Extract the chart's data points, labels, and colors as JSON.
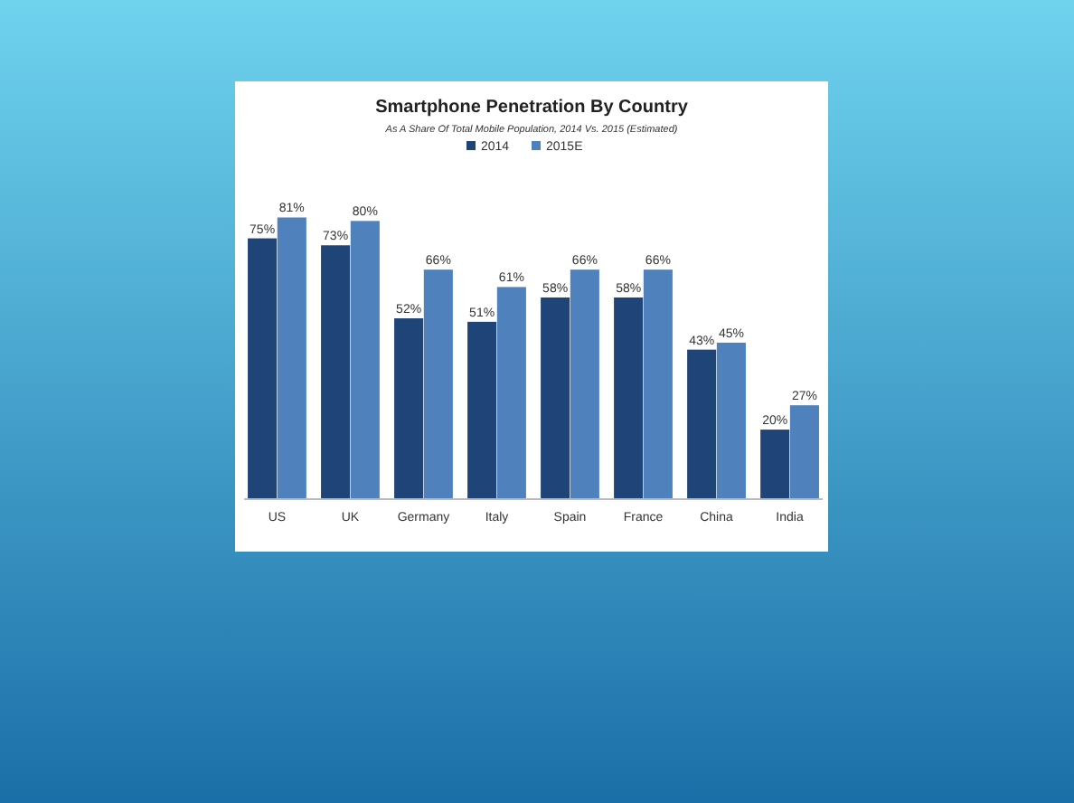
{
  "chart_data": {
    "type": "bar",
    "title": "Smartphone Penetration By Country",
    "subtitle": "As A Share Of Total Mobile Population, 2014 Vs. 2015 (Estimated)",
    "categories": [
      "US",
      "UK",
      "Germany",
      "Italy",
      "Spain",
      "France",
      "China",
      "India"
    ],
    "series": [
      {
        "name": "2014",
        "color": "#1f4477",
        "values": [
          75,
          73,
          52,
          51,
          58,
          58,
          43,
          20
        ],
        "value_labels": [
          "75%",
          "73%",
          "52%",
          "51%",
          "58%",
          "58%",
          "43%",
          "20%"
        ]
      },
      {
        "name": "2015E",
        "color": "#4f81bd",
        "values": [
          81,
          80,
          66,
          61,
          66,
          66,
          45,
          27
        ],
        "value_labels": [
          "81%",
          "80%",
          "66%",
          "61%",
          "66%",
          "66%",
          "45%",
          "27%"
        ]
      }
    ],
    "legend": "top",
    "grid": false
  }
}
